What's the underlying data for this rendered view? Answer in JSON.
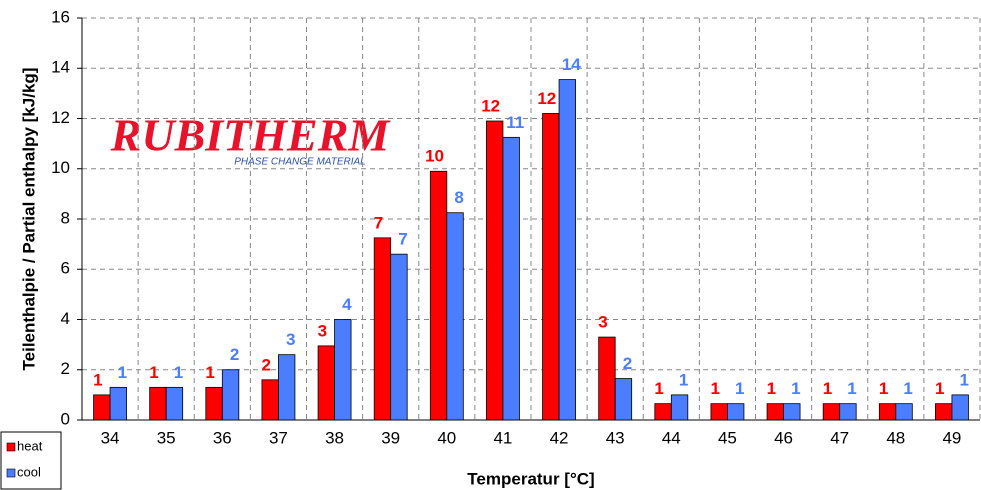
{
  "chart_data": {
    "type": "bar",
    "x_label": "Temperatur [°C]",
    "y_label": "Teilenthalpie / Partial enthalpy [kJ/kg]",
    "categories": [
      "34",
      "35",
      "36",
      "37",
      "38",
      "39",
      "40",
      "41",
      "42",
      "43",
      "44",
      "45",
      "46",
      "47",
      "48",
      "49"
    ],
    "series": [
      {
        "name": "heat",
        "color": "#ff0000",
        "values": [
          1.0,
          1.3,
          1.3,
          1.6,
          2.95,
          7.25,
          9.9,
          11.9,
          12.2,
          3.3,
          0.65,
          0.65,
          0.65,
          0.65,
          0.65,
          0.65
        ],
        "value_labels": [
          "1",
          "1",
          "1",
          "2",
          "3",
          "7",
          "10",
          "12",
          "12",
          "3",
          "1",
          "1",
          "1",
          "1",
          "1",
          "1"
        ]
      },
      {
        "name": "cool",
        "color": "#4a7dff",
        "values": [
          1.3,
          1.3,
          2.0,
          2.6,
          4.0,
          6.6,
          8.25,
          11.25,
          13.55,
          1.65,
          1.0,
          0.65,
          0.65,
          0.65,
          0.65,
          1.0
        ],
        "value_labels": [
          "1",
          "1",
          "2",
          "3",
          "4",
          "7",
          "8",
          "11",
          "14",
          "2",
          "1",
          "1",
          "1",
          "1",
          "1",
          "1"
        ]
      }
    ],
    "ylim": [
      0,
      16
    ],
    "yticks": [
      0,
      2,
      4,
      6,
      8,
      10,
      12,
      14,
      16
    ],
    "grid": true,
    "legend": "lower left"
  },
  "logo": {
    "name": "RUBITHERM",
    "tagline": "PHASE CHANGE MATERIAL"
  }
}
